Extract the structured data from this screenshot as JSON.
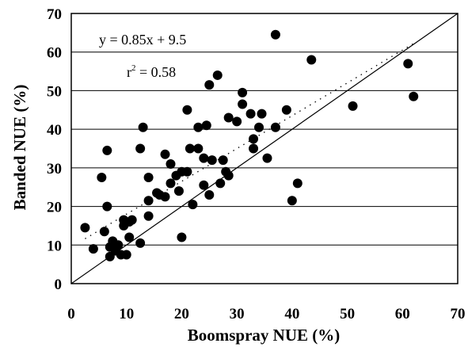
{
  "chart_data": {
    "type": "scatter",
    "title": "",
    "xlabel": "Boomspray NUE (%)",
    "ylabel": "Banded NUE (%)",
    "xlim": [
      0,
      70
    ],
    "ylim": [
      0,
      70
    ],
    "xticks": [
      "0",
      "10",
      "20",
      "30",
      "40",
      "50",
      "60",
      "70"
    ],
    "yticks": [
      "0",
      "10",
      "20",
      "30",
      "40",
      "50",
      "60",
      "70"
    ],
    "grid": "horizontal",
    "annotations": {
      "equation": "y = 0.85x + 9.5",
      "r2_prefix": "r",
      "r2_exponent": "2",
      "r2_value": " = 0.58"
    },
    "trendline": {
      "slope": 0.85,
      "intercept": 9.5,
      "x_range": [
        2.5,
        62
      ],
      "style": "dotted"
    },
    "reference_line": {
      "slope": 1,
      "intercept": 0,
      "style": "solid"
    },
    "series": [
      {
        "marker": "filled-circle",
        "points": [
          [
            2.5,
            14.5
          ],
          [
            4,
            9
          ],
          [
            5.5,
            27.5
          ],
          [
            6,
            13.5
          ],
          [
            6.5,
            20
          ],
          [
            6.5,
            34.5
          ],
          [
            7,
            7
          ],
          [
            7,
            9.5
          ],
          [
            7.5,
            11
          ],
          [
            8,
            8.5
          ],
          [
            8.5,
            10
          ],
          [
            9,
            7.5
          ],
          [
            9.5,
            15
          ],
          [
            9.5,
            16.5
          ],
          [
            10,
            7.5
          ],
          [
            10.5,
            12
          ],
          [
            10.5,
            16
          ],
          [
            11,
            16.5
          ],
          [
            12.5,
            10.5
          ],
          [
            12.5,
            35
          ],
          [
            13,
            40.5
          ],
          [
            14,
            27.5
          ],
          [
            14,
            21.5
          ],
          [
            14,
            17.5
          ],
          [
            15.5,
            23.5
          ],
          [
            16,
            23
          ],
          [
            17,
            22.5
          ],
          [
            17,
            33.5
          ],
          [
            18,
            31
          ],
          [
            18,
            26
          ],
          [
            19,
            28
          ],
          [
            19.5,
            24
          ],
          [
            20,
            12
          ],
          [
            20,
            29
          ],
          [
            21,
            45
          ],
          [
            21,
            29
          ],
          [
            21.5,
            35
          ],
          [
            22,
            20.5
          ],
          [
            23,
            40.5
          ],
          [
            23,
            35
          ],
          [
            24,
            32.5
          ],
          [
            24,
            25.5
          ],
          [
            24.5,
            41
          ],
          [
            25,
            51.5
          ],
          [
            25,
            23
          ],
          [
            25.5,
            32
          ],
          [
            26.5,
            54
          ],
          [
            27,
            26
          ],
          [
            27.5,
            32
          ],
          [
            28,
            29
          ],
          [
            28.5,
            43
          ],
          [
            28.5,
            28
          ],
          [
            30,
            42
          ],
          [
            31,
            46.5
          ],
          [
            31,
            49.5
          ],
          [
            32.5,
            44
          ],
          [
            33,
            37.5
          ],
          [
            33,
            35
          ],
          [
            34,
            40.5
          ],
          [
            34.5,
            44
          ],
          [
            35.5,
            32.5
          ],
          [
            37,
            40.5
          ],
          [
            37,
            64.5
          ],
          [
            39,
            45
          ],
          [
            40,
            21.5
          ],
          [
            41,
            26
          ],
          [
            43.5,
            58
          ],
          [
            51,
            46
          ],
          [
            61,
            57
          ],
          [
            62,
            48.5
          ]
        ]
      }
    ]
  }
}
